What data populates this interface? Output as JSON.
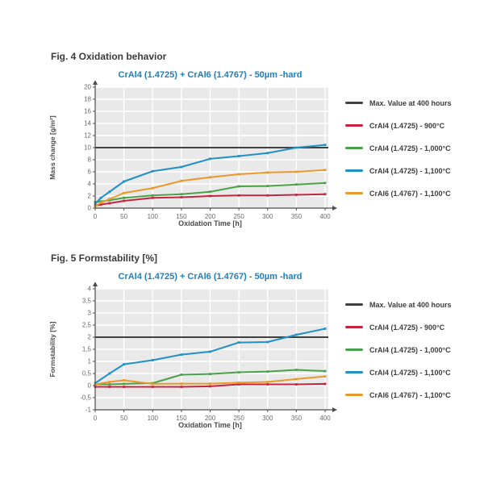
{
  "page": {
    "background": "#ffffff"
  },
  "colors": {
    "title_blue": "#1e7fbc",
    "heading_gray": "#3b3b3b",
    "plot_background": "#e9e9e9",
    "gridline": "#ffffff",
    "axis": "#4d4d4d"
  },
  "chart_data": [
    {
      "type": "line",
      "heading": "Fig. 4 Oxidation behavior",
      "title": "CrAl4 (1.4725) + CrAl6 (1.4767) - 50µm -hard",
      "xlabel": "Oxidation Time [h]",
      "ylabel": "Mass change [g/m²]",
      "xlim": [
        0,
        400
      ],
      "ylim": [
        0,
        20
      ],
      "grid": true,
      "legend_position": "right",
      "x_ticks": [
        0,
        50,
        100,
        150,
        200,
        250,
        300,
        350,
        400
      ],
      "x_tick_labels": [
        "0",
        "50",
        "100",
        "150",
        "200",
        "250",
        "300",
        "350",
        "400"
      ],
      "y_ticks": [
        0,
        2,
        4,
        6,
        8,
        10,
        12,
        14,
        16,
        18,
        20
      ],
      "y_tick_labels": [
        "0",
        "2",
        "4",
        "6",
        "8",
        "10",
        "12",
        "14",
        "16",
        "18",
        "20"
      ],
      "max_line": {
        "label": "Max. Value at 400 hours",
        "value": 10,
        "color": "#404040"
      },
      "x": [
        0,
        10,
        25,
        50,
        100,
        150,
        200,
        250,
        300,
        350,
        400
      ],
      "series": [
        {
          "name": "CrAl4 (1.4725) - 900°C",
          "color": "#c4243f",
          "values": [
            0.4,
            0.6,
            0.8,
            1.2,
            1.7,
            1.8,
            2.0,
            2.1,
            2.1,
            2.2,
            2.3
          ]
        },
        {
          "name": "CrAl4 (1.4725) - 1,000°C",
          "color": "#49a24a",
          "values": [
            1.0,
            1.1,
            1.3,
            1.7,
            2.1,
            2.3,
            2.7,
            3.6,
            3.65,
            3.9,
            4.15
          ]
        },
        {
          "name": "CrAl4 (1.4725) - 1,100°C",
          "color": "#2190c4",
          "values": [
            0.7,
            1.7,
            2.7,
            4.4,
            6.1,
            6.8,
            8.15,
            8.6,
            9.1,
            10.0,
            10.45
          ]
        },
        {
          "name": "CrAl6 (1.4767) - 1,100°C",
          "color": "#e9992b",
          "values": [
            0.3,
            0.9,
            1.5,
            2.5,
            3.3,
            4.5,
            5.1,
            5.6,
            5.9,
            6.0,
            6.3
          ]
        }
      ]
    },
    {
      "type": "line",
      "heading": "Fig. 5 Formstability [%]",
      "title": "CrAl4 (1.4725) + CrAl6 (1.4767) - 50µm -hard",
      "xlabel": "Oxidation Time [h]",
      "ylabel": "Formstability [%]",
      "xlim": [
        0,
        400
      ],
      "ylim": [
        -1,
        4
      ],
      "grid": true,
      "legend_position": "right",
      "x_ticks": [
        0,
        50,
        100,
        150,
        200,
        250,
        300,
        350,
        400
      ],
      "x_tick_labels": [
        "0",
        "50",
        "100",
        "150",
        "200",
        "250",
        "300",
        "350",
        "400"
      ],
      "y_ticks": [
        -1,
        -0.5,
        0,
        0.5,
        1,
        1.5,
        2,
        2.5,
        3,
        3.5,
        4
      ],
      "y_tick_labels": [
        "-1",
        "-0,5",
        "0",
        "0,5",
        "1",
        "1,5",
        "2",
        "2,5",
        "3",
        "3,5",
        "4"
      ],
      "max_line": {
        "label": "Max. Value at 400 hours",
        "value": 2,
        "color": "#404040"
      },
      "x": [
        0,
        25,
        50,
        100,
        150,
        200,
        250,
        300,
        350,
        400
      ],
      "series": [
        {
          "name": "CrAl4 (1.4725) - 900°C",
          "color": "#c4243f",
          "values": [
            -0.05,
            -0.05,
            -0.05,
            -0.05,
            -0.05,
            -0.03,
            0.05,
            0.05,
            0.05,
            0.07
          ]
        },
        {
          "name": "CrAl4 (1.4725) - 1,000°C",
          "color": "#49a24a",
          "values": [
            0.05,
            0.05,
            0.07,
            0.1,
            0.45,
            0.48,
            0.55,
            0.58,
            0.65,
            0.6
          ]
        },
        {
          "name": "CrAl4 (1.4725) - 1,100°C",
          "color": "#2190c4",
          "values": [
            0.1,
            0.5,
            0.88,
            1.05,
            1.28,
            1.4,
            1.78,
            1.8,
            2.1,
            2.35
          ]
        },
        {
          "name": "CrAl6 (1.4767) - 1,100°C",
          "color": "#e9992b",
          "values": [
            0.05,
            0.15,
            0.22,
            0.07,
            0.08,
            0.08,
            0.12,
            0.15,
            0.27,
            0.38
          ]
        }
      ]
    }
  ]
}
